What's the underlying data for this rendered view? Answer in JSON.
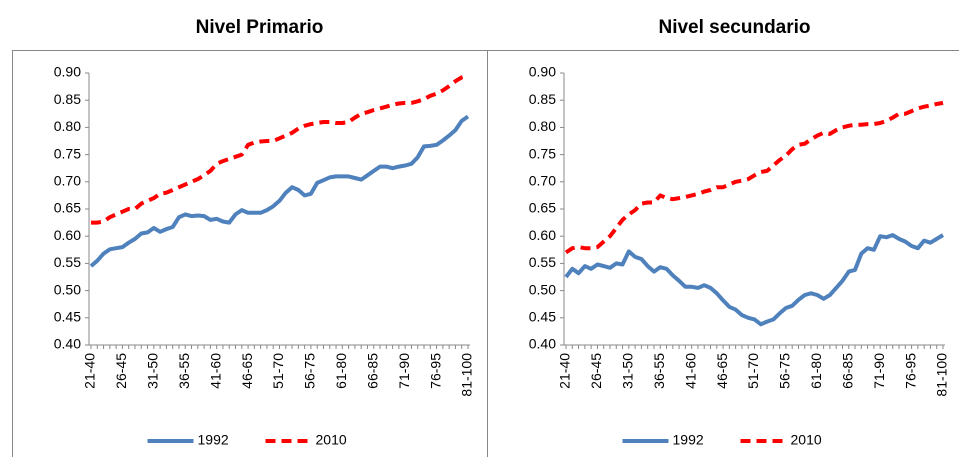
{
  "chart_data": [
    {
      "type": "line",
      "title": "Nivel Primario",
      "categories": [
        "21-40",
        null,
        null,
        null,
        null,
        "26-45",
        null,
        null,
        null,
        null,
        "31-50",
        null,
        null,
        null,
        null,
        "36-55",
        null,
        null,
        null,
        null,
        "41-60",
        null,
        null,
        null,
        null,
        "46-65",
        null,
        null,
        null,
        null,
        "51-70",
        null,
        null,
        null,
        null,
        "56-75",
        null,
        null,
        null,
        null,
        "61-80",
        null,
        null,
        null,
        null,
        "66-85",
        null,
        null,
        null,
        null,
        "71-90",
        null,
        null,
        null,
        null,
        "76-95",
        null,
        null,
        null,
        null,
        "81-100"
      ],
      "series": [
        {
          "name": "1992",
          "color": "#4f81bd",
          "dashed": false,
          "values": [
            0.545,
            0.555,
            0.568,
            0.576,
            0.578,
            0.58,
            0.588,
            0.595,
            0.605,
            0.607,
            0.615,
            0.608,
            0.613,
            0.617,
            0.635,
            0.64,
            0.637,
            0.638,
            0.637,
            0.63,
            0.632,
            0.627,
            0.625,
            0.64,
            0.648,
            0.643,
            0.643,
            0.643,
            0.648,
            0.655,
            0.665,
            0.68,
            0.69,
            0.685,
            0.675,
            0.678,
            0.698,
            0.703,
            0.708,
            0.71,
            0.71,
            0.71,
            0.707,
            0.704,
            0.712,
            0.72,
            0.728,
            0.728,
            0.725,
            0.728,
            0.73,
            0.733,
            0.745,
            0.765,
            0.766,
            0.768,
            0.776,
            0.785,
            0.795,
            0.812,
            0.82
          ]
        },
        {
          "name": "2010",
          "color": "#ff0000",
          "dashed": true,
          "values": [
            0.625,
            0.625,
            0.627,
            0.635,
            0.64,
            0.645,
            0.65,
            0.65,
            0.66,
            0.665,
            0.67,
            0.678,
            0.68,
            0.685,
            0.69,
            0.695,
            0.7,
            0.705,
            0.712,
            0.72,
            0.733,
            0.738,
            0.742,
            0.746,
            0.75,
            0.768,
            0.772,
            0.774,
            0.775,
            0.775,
            0.78,
            0.785,
            0.79,
            0.798,
            0.803,
            0.806,
            0.808,
            0.81,
            0.81,
            0.808,
            0.808,
            0.81,
            0.818,
            0.825,
            0.828,
            0.832,
            0.835,
            0.838,
            0.842,
            0.844,
            0.845,
            0.845,
            0.848,
            0.852,
            0.858,
            0.862,
            0.868,
            0.876,
            0.885,
            0.892,
            0.895
          ]
        }
      ],
      "ylim": [
        0.4,
        0.9
      ],
      "yticks": [
        {
          "value": 0.4,
          "label": "0.40"
        },
        {
          "value": 0.45,
          "label": "0.45"
        },
        {
          "value": 0.5,
          "label": "0.50"
        },
        {
          "value": 0.55,
          "label": "0.55"
        },
        {
          "value": 0.6,
          "label": "0.60"
        },
        {
          "value": 0.65,
          "label": "0.65"
        },
        {
          "value": 0.7,
          "label": "0.70"
        },
        {
          "value": 0.75,
          "label": "0.75"
        },
        {
          "value": 0.8,
          "label": "0.80"
        },
        {
          "value": 0.85,
          "label": "0.85"
        },
        {
          "value": 0.9,
          "label": "0.90"
        }
      ],
      "grid": false,
      "legend": "bottom"
    },
    {
      "type": "line",
      "title": "Nivel secundario",
      "categories": [
        "21-40",
        null,
        null,
        null,
        null,
        "26-45",
        null,
        null,
        null,
        null,
        "31-50",
        null,
        null,
        null,
        null,
        "36-55",
        null,
        null,
        null,
        null,
        "41-60",
        null,
        null,
        null,
        null,
        "46-65",
        null,
        null,
        null,
        null,
        "51-70",
        null,
        null,
        null,
        null,
        "56-75",
        null,
        null,
        null,
        null,
        "61-80",
        null,
        null,
        null,
        null,
        "66-85",
        null,
        null,
        null,
        null,
        "71-90",
        null,
        null,
        null,
        null,
        "76-95",
        null,
        null,
        null,
        null,
        "81-100"
      ],
      "series": [
        {
          "name": "1992",
          "color": "#4f81bd",
          "dashed": false,
          "values": [
            0.525,
            0.54,
            0.532,
            0.545,
            0.54,
            0.548,
            0.545,
            0.542,
            0.55,
            0.548,
            0.572,
            0.562,
            0.558,
            0.545,
            0.535,
            0.543,
            0.54,
            0.528,
            0.518,
            0.507,
            0.507,
            0.505,
            0.51,
            0.505,
            0.495,
            0.482,
            0.47,
            0.465,
            0.455,
            0.45,
            0.447,
            0.438,
            0.443,
            0.447,
            0.458,
            0.468,
            0.472,
            0.483,
            0.492,
            0.495,
            0.492,
            0.485,
            0.492,
            0.505,
            0.518,
            0.535,
            0.538,
            0.568,
            0.578,
            0.575,
            0.6,
            0.598,
            0.602,
            0.595,
            0.59,
            0.582,
            0.578,
            0.592,
            0.588,
            0.595,
            0.602
          ]
        },
        {
          "name": "2010",
          "color": "#ff0000",
          "dashed": true,
          "values": [
            0.57,
            0.578,
            0.58,
            0.578,
            0.578,
            0.58,
            0.59,
            0.6,
            0.615,
            0.63,
            0.64,
            0.648,
            0.66,
            0.662,
            0.662,
            0.675,
            0.67,
            0.668,
            0.67,
            0.672,
            0.675,
            0.678,
            0.682,
            0.685,
            0.69,
            0.69,
            0.695,
            0.7,
            0.702,
            0.705,
            0.712,
            0.718,
            0.72,
            0.73,
            0.74,
            0.748,
            0.76,
            0.768,
            0.77,
            0.778,
            0.785,
            0.79,
            0.788,
            0.795,
            0.8,
            0.803,
            0.805,
            0.805,
            0.806,
            0.806,
            0.808,
            0.812,
            0.818,
            0.825,
            0.825,
            0.83,
            0.835,
            0.838,
            0.84,
            0.843,
            0.845
          ]
        }
      ],
      "ylim": [
        0.4,
        0.9
      ],
      "yticks": [
        {
          "value": 0.4,
          "label": "0.40"
        },
        {
          "value": 0.45,
          "label": "0.45"
        },
        {
          "value": 0.5,
          "label": "0.50"
        },
        {
          "value": 0.55,
          "label": "0.55"
        },
        {
          "value": 0.6,
          "label": "0.60"
        },
        {
          "value": 0.65,
          "label": "0.65"
        },
        {
          "value": 0.7,
          "label": "0.70"
        },
        {
          "value": 0.75,
          "label": "0.75"
        },
        {
          "value": 0.8,
          "label": "0.80"
        },
        {
          "value": 0.85,
          "label": "0.85"
        },
        {
          "value": 0.9,
          "label": "0.90"
        }
      ],
      "grid": false,
      "legend": "bottom"
    }
  ]
}
